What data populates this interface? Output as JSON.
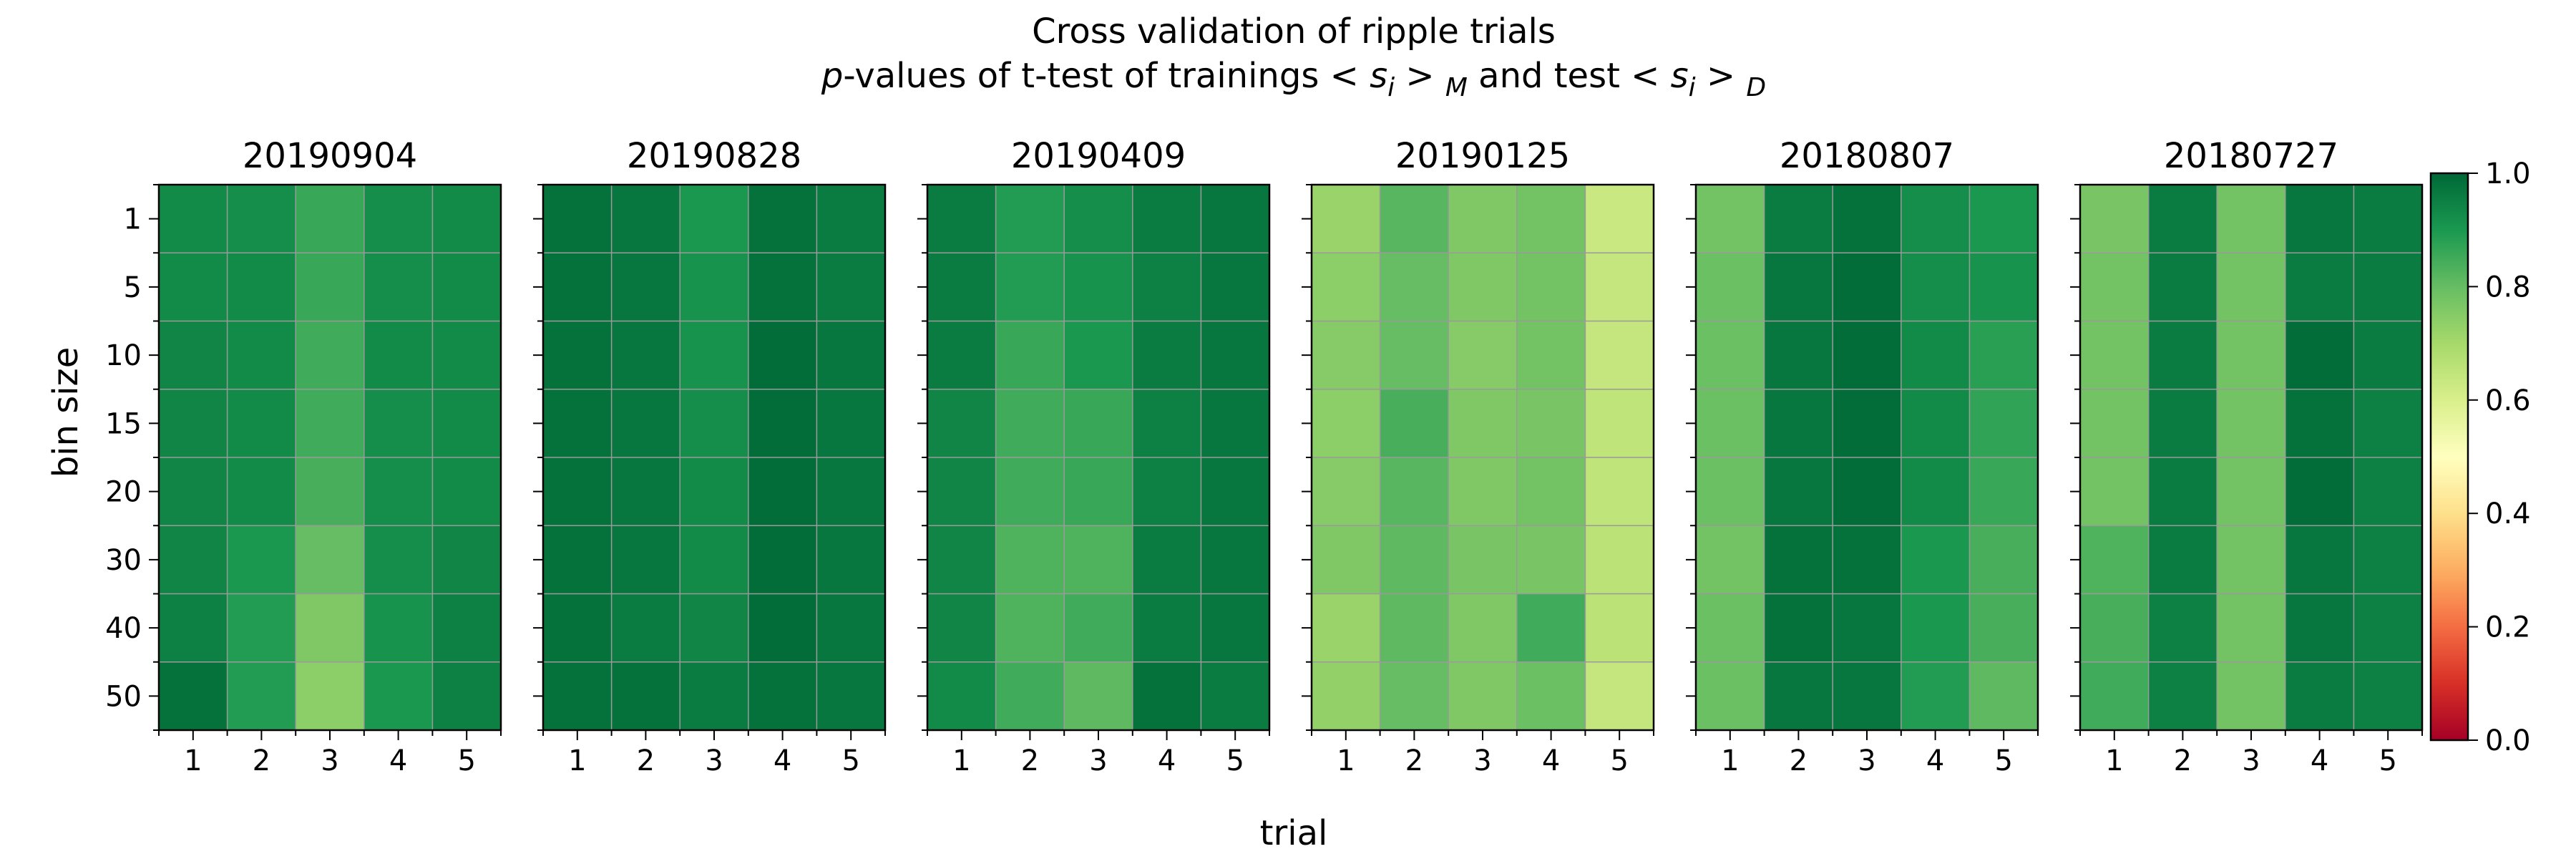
{
  "chart_data": {
    "type": "heatmap",
    "title": "Cross validation of ripple trials",
    "subtitle_parts": [
      "p",
      "-values of t-test of trainings  < ",
      "s",
      "i",
      " > ",
      "M",
      " and test  < ",
      "s",
      "i",
      " > ",
      "D"
    ],
    "xlabel": "trial",
    "ylabel": "bin size",
    "colormap": "RdYlGn",
    "colors": {
      "low": "#a50026",
      "mid": "#ffffbf",
      "high": "#006837",
      "gridline": "#9a9a9a"
    },
    "x_ticks": [
      "1",
      "2",
      "3",
      "4",
      "5"
    ],
    "y_ticks": [
      "1",
      "5",
      "10",
      "15",
      "20",
      "30",
      "40",
      "50"
    ],
    "colorbar": {
      "range": [
        0.0,
        1.0
      ],
      "ticks": [
        "0.0",
        "0.2",
        "0.4",
        "0.6",
        "0.8",
        "1.0"
      ]
    },
    "panels": [
      {
        "name": "20190904",
        "values": [
          [
            0.93,
            0.92,
            0.86,
            0.92,
            0.93
          ],
          [
            0.93,
            0.93,
            0.86,
            0.92,
            0.93
          ],
          [
            0.94,
            0.93,
            0.85,
            0.93,
            0.93
          ],
          [
            0.94,
            0.93,
            0.85,
            0.92,
            0.93
          ],
          [
            0.94,
            0.93,
            0.84,
            0.92,
            0.93
          ],
          [
            0.94,
            0.9,
            0.8,
            0.92,
            0.94
          ],
          [
            0.95,
            0.89,
            0.76,
            0.91,
            0.95
          ],
          [
            0.98,
            0.89,
            0.74,
            0.9,
            0.95
          ]
        ]
      },
      {
        "name": "20190828",
        "values": [
          [
            0.98,
            0.97,
            0.9,
            0.98,
            0.96
          ],
          [
            0.98,
            0.97,
            0.91,
            0.98,
            0.96
          ],
          [
            0.98,
            0.97,
            0.91,
            0.99,
            0.97
          ],
          [
            0.98,
            0.97,
            0.92,
            0.99,
            0.97
          ],
          [
            0.98,
            0.97,
            0.93,
            0.99,
            0.97
          ],
          [
            0.98,
            0.97,
            0.93,
            0.99,
            0.97
          ],
          [
            0.98,
            0.96,
            0.94,
            0.99,
            0.97
          ],
          [
            0.98,
            0.98,
            0.96,
            0.98,
            0.97
          ]
        ]
      },
      {
        "name": "20190409",
        "values": [
          [
            0.96,
            0.89,
            0.92,
            0.96,
            0.97
          ],
          [
            0.96,
            0.89,
            0.91,
            0.95,
            0.97
          ],
          [
            0.96,
            0.86,
            0.9,
            0.96,
            0.97
          ],
          [
            0.94,
            0.85,
            0.86,
            0.95,
            0.97
          ],
          [
            0.94,
            0.85,
            0.86,
            0.95,
            0.97
          ],
          [
            0.94,
            0.83,
            0.83,
            0.96,
            0.97
          ],
          [
            0.94,
            0.83,
            0.85,
            0.96,
            0.97
          ],
          [
            0.93,
            0.85,
            0.81,
            0.98,
            0.96
          ]
        ]
      },
      {
        "name": "20190125",
        "values": [
          [
            0.72,
            0.82,
            0.76,
            0.78,
            0.63
          ],
          [
            0.74,
            0.8,
            0.76,
            0.78,
            0.64
          ],
          [
            0.75,
            0.8,
            0.75,
            0.78,
            0.64
          ],
          [
            0.74,
            0.84,
            0.76,
            0.77,
            0.65
          ],
          [
            0.75,
            0.82,
            0.76,
            0.78,
            0.65
          ],
          [
            0.76,
            0.81,
            0.77,
            0.77,
            0.66
          ],
          [
            0.72,
            0.81,
            0.76,
            0.85,
            0.66
          ],
          [
            0.73,
            0.8,
            0.76,
            0.79,
            0.64
          ]
        ]
      },
      {
        "name": "20180807",
        "values": [
          [
            0.78,
            0.96,
            0.98,
            0.92,
            0.9
          ],
          [
            0.79,
            0.97,
            0.99,
            0.92,
            0.91
          ],
          [
            0.79,
            0.97,
            0.99,
            0.93,
            0.88
          ],
          [
            0.79,
            0.97,
            0.99,
            0.93,
            0.87
          ],
          [
            0.79,
            0.97,
            0.99,
            0.93,
            0.86
          ],
          [
            0.78,
            0.98,
            0.98,
            0.9,
            0.84
          ],
          [
            0.79,
            0.98,
            0.97,
            0.9,
            0.84
          ],
          [
            0.79,
            0.97,
            0.97,
            0.89,
            0.81
          ]
        ]
      },
      {
        "name": "20180727",
        "values": [
          [
            0.77,
            0.96,
            0.78,
            0.97,
            0.96
          ],
          [
            0.78,
            0.96,
            0.78,
            0.96,
            0.96
          ],
          [
            0.78,
            0.96,
            0.78,
            0.99,
            0.96
          ],
          [
            0.78,
            0.96,
            0.78,
            0.98,
            0.95
          ],
          [
            0.78,
            0.96,
            0.78,
            0.99,
            0.95
          ],
          [
            0.83,
            0.96,
            0.78,
            0.97,
            0.95
          ],
          [
            0.84,
            0.95,
            0.78,
            0.97,
            0.95
          ],
          [
            0.85,
            0.95,
            0.78,
            0.96,
            0.95
          ]
        ]
      }
    ]
  }
}
